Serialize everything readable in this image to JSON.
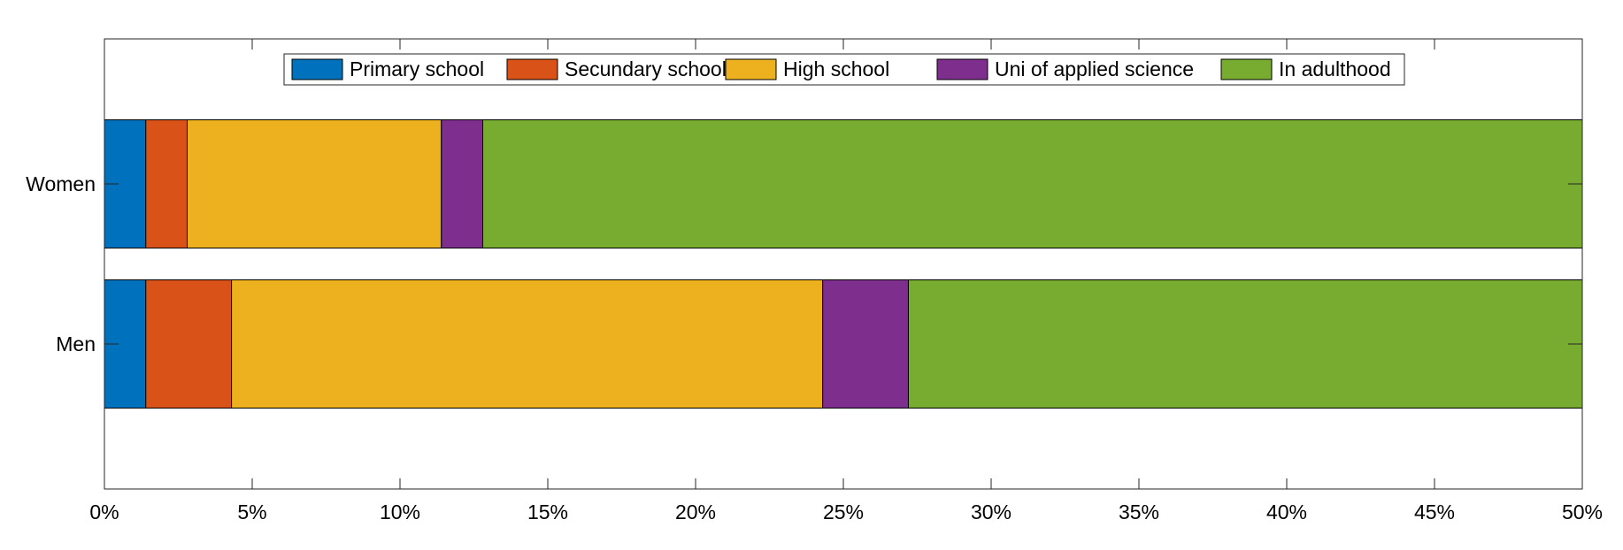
{
  "chart_data": {
    "type": "bar",
    "orientation": "horizontal",
    "stacked": true,
    "title": "",
    "xlabel": "",
    "ylabel": "",
    "xlim": [
      0,
      50
    ],
    "x_ticks": [
      0,
      5,
      10,
      15,
      20,
      25,
      30,
      35,
      40,
      45,
      50
    ],
    "x_tick_labels": [
      "0%",
      "5%",
      "10%",
      "15%",
      "20%",
      "25%",
      "30%",
      "35%",
      "40%",
      "45%",
      "50%"
    ],
    "categories": [
      "Women",
      "Men"
    ],
    "legend_position": "top-center",
    "grid": false,
    "series": [
      {
        "name": "Primary school",
        "color": "#0072BD",
        "values": [
          1.4,
          1.4
        ]
      },
      {
        "name": "Secundary school",
        "color": "#D95319",
        "values": [
          1.4,
          2.9
        ]
      },
      {
        "name": "High school",
        "color": "#EDB120",
        "values": [
          8.6,
          20.0
        ]
      },
      {
        "name": "Uni of applied science",
        "color": "#7E2F8E",
        "values": [
          1.4,
          2.9
        ]
      },
      {
        "name": "In adulthood",
        "color": "#77AC30",
        "values": [
          37.2,
          22.8
        ]
      }
    ]
  }
}
